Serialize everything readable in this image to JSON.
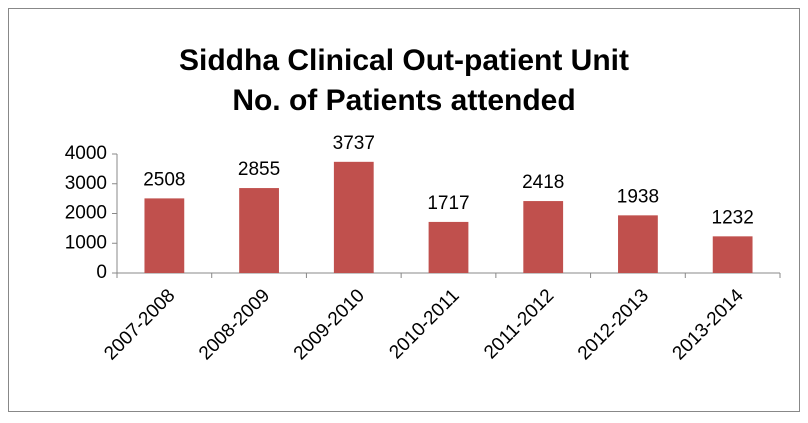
{
  "chart_data": {
    "type": "bar",
    "title": [
      "Siddha Clinical Out-patient Unit",
      "No. of Patients attended"
    ],
    "categories": [
      "2007-2008",
      "2008-2009",
      "2009-2010",
      "2010-2011",
      "2011-2012",
      "2012-2013",
      "2013-2014"
    ],
    "values": [
      2508,
      2855,
      3737,
      1717,
      2418,
      1938,
      1232
    ],
    "color": "#c0504d",
    "ylim": [
      0,
      4000
    ],
    "yticks": [
      0,
      1000,
      2000,
      3000,
      4000
    ],
    "grid": false,
    "data_labels": true
  }
}
